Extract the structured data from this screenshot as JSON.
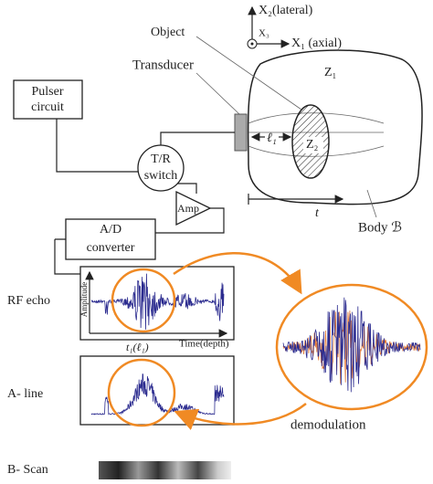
{
  "axes": {
    "x2": "X₂(lateral)",
    "x3": "X₃",
    "x1": "X₁ (axial)"
  },
  "labels": {
    "object": "Object",
    "transducer": "Transducer",
    "z1": "Z₁",
    "z2": "Z₂",
    "l1": "ℓ₁",
    "t": "t",
    "body": "Body ℬ"
  },
  "blocks": {
    "pulser": [
      "Pulser",
      "circuit"
    ],
    "tr_switch": [
      "T/R",
      "switch"
    ],
    "amp": "Amp",
    "ad": [
      "A/D",
      "converter"
    ]
  },
  "signals": {
    "rf_echo": "RF echo",
    "amplitude": "Amplitude",
    "t1": "t₁(ℓ₁)",
    "time": "Time(depth)",
    "a_line": "A- line",
    "demodulation": "demodulation",
    "b_scan": "B- Scan"
  }
}
